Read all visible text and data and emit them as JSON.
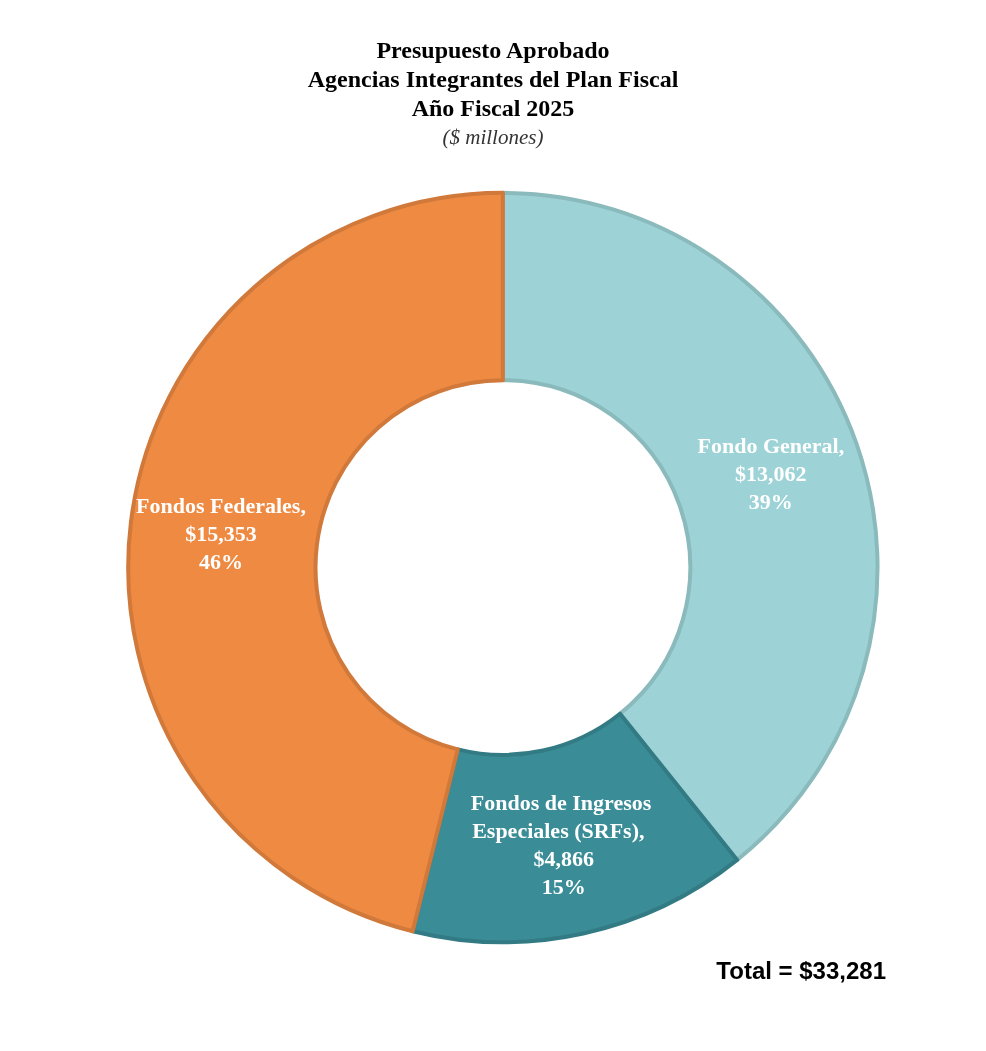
{
  "chart_data": {
    "type": "donut",
    "title": "Presupuesto Aprobado\nAgencias Integrantes del Plan Fiscal\nAño Fiscal 2025",
    "subtitle": "($ millones)",
    "categories": [
      "Fondo General",
      "Fondos de Ingresos Especiales (SRFs)",
      "Fondos Federales"
    ],
    "values": [
      13062,
      4866,
      15353
    ],
    "value_labels": [
      ",\n$13,062\n39%",
      ",  $4,866\n15%",
      ",\n$15,353\n46%"
    ],
    "colors": [
      "#9dd3d6",
      "#3a8c96",
      "#ee8a42"
    ],
    "legend": false,
    "annotations": [
      "Total = $33,281"
    ]
  }
}
